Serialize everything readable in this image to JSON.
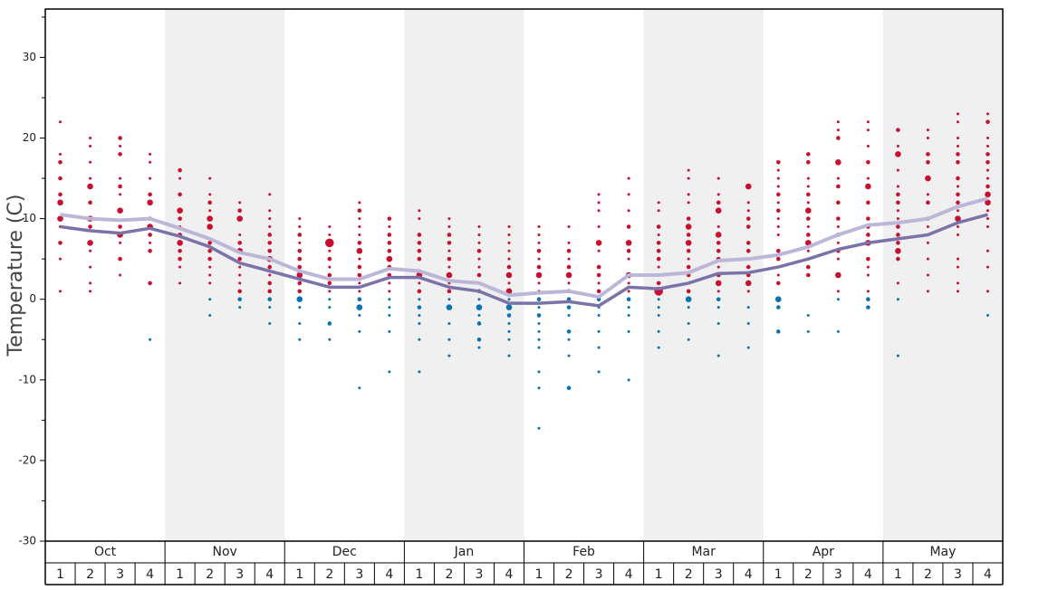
{
  "chart_data": {
    "type": "weekly-scatter",
    "y_label": "Temperature (C)",
    "categories": [
      "Oct",
      "Nov",
      "Dec",
      "Jan",
      "Feb",
      "Mar",
      "Apr",
      "May"
    ],
    "week_labels": [
      "1",
      "2",
      "3",
      "4"
    ],
    "ylim": [
      -30,
      36
    ],
    "yticks": [
      -30,
      -20,
      -10,
      0,
      10,
      20,
      30
    ],
    "minor_yticks": [
      -25,
      -15,
      -5,
      5,
      15,
      25,
      35
    ],
    "warm_color": "#c8102e",
    "cold_color": "#0a72b0",
    "color_threshold": 0,
    "band_color": "#f0f0f0",
    "series": [
      {
        "color": "#bcb6d8",
        "values": [
          10.5,
          10,
          9.8,
          10,
          8.8,
          7.5,
          5.8,
          5,
          3.5,
          2.5,
          2.5,
          3.8,
          3.5,
          2.3,
          2.0,
          0.5,
          0.8,
          1.0,
          0.3,
          3.0,
          3.0,
          3.3,
          4.8,
          5.0,
          5.5,
          6.5,
          8.0,
          9.2,
          9.5,
          10.0,
          11.5,
          12.5
        ]
      },
      {
        "color": "#7a72a8",
        "values": [
          9.0,
          8.5,
          8.2,
          8.8,
          7.8,
          6.5,
          4.5,
          3.5,
          2.5,
          1.5,
          1.5,
          2.7,
          2.7,
          1.5,
          1.0,
          -0.5,
          -0.5,
          -0.3,
          -0.8,
          1.5,
          1.3,
          2.0,
          3.2,
          3.3,
          4.0,
          5.0,
          6.2,
          7.0,
          7.5,
          8.0,
          9.5,
          10.5
        ]
      }
    ],
    "weeks": [
      {
        "temps": [
          22,
          18,
          17,
          15,
          13,
          12,
          10,
          9,
          7,
          5,
          1
        ],
        "counts": [
          1,
          1,
          2,
          2,
          2,
          3,
          3,
          1,
          2,
          1,
          1
        ]
      },
      {
        "temps": [
          20,
          19,
          17,
          15,
          14,
          12,
          10,
          9,
          7,
          6,
          4,
          2,
          1
        ],
        "counts": [
          1,
          1,
          1,
          1,
          3,
          2,
          3,
          2,
          3,
          1,
          1,
          1,
          1
        ]
      },
      {
        "temps": [
          20,
          19,
          18,
          15,
          14,
          13,
          11,
          9,
          8,
          7,
          5,
          3
        ],
        "counts": [
          2,
          1,
          2,
          1,
          2,
          1,
          3,
          2,
          3,
          1,
          2,
          1
        ]
      },
      {
        "temps": [
          18,
          17,
          15,
          13,
          12,
          10,
          9,
          8,
          7,
          6,
          2,
          -5
        ],
        "counts": [
          1,
          1,
          1,
          2,
          3,
          2,
          3,
          2,
          1,
          2,
          2,
          1
        ]
      },
      {
        "temps": [
          16,
          15,
          13,
          11,
          10,
          9,
          8,
          7,
          6,
          5,
          4,
          2
        ],
        "counts": [
          2,
          1,
          2,
          3,
          2,
          1,
          2,
          3,
          2,
          2,
          1,
          1
        ]
      },
      {
        "temps": [
          15,
          13,
          12,
          11,
          10,
          9,
          7,
          6,
          5,
          4,
          3,
          2,
          0,
          -2
        ],
        "counts": [
          1,
          1,
          2,
          1,
          3,
          3,
          2,
          2,
          2,
          1,
          1,
          1,
          1,
          1
        ]
      },
      {
        "temps": [
          12,
          11,
          10,
          8,
          7,
          6,
          5,
          4,
          3,
          2,
          1,
          0,
          -1
        ],
        "counts": [
          1,
          2,
          3,
          1,
          2,
          3,
          2,
          1,
          1,
          1,
          2,
          2,
          1
        ]
      },
      {
        "temps": [
          13,
          11,
          10,
          9,
          8,
          7,
          6,
          5,
          4,
          3,
          2,
          1,
          0,
          -1,
          -3
        ],
        "counts": [
          1,
          1,
          1,
          1,
          2,
          2,
          2,
          3,
          2,
          1,
          2,
          2,
          2,
          1,
          1
        ]
      },
      {
        "temps": [
          10,
          9,
          8,
          7,
          6,
          5,
          4,
          3,
          2,
          1,
          0,
          -1,
          -3,
          -5
        ],
        "counts": [
          1,
          1,
          2,
          1,
          2,
          2,
          2,
          3,
          2,
          2,
          3,
          1,
          1,
          1
        ]
      },
      {
        "temps": [
          9,
          8,
          7,
          6,
          5,
          4,
          3,
          2,
          1,
          0,
          -1,
          -3,
          -5
        ],
        "counts": [
          1,
          1,
          4,
          1,
          2,
          1,
          2,
          2,
          1,
          1,
          1,
          2,
          1
        ]
      },
      {
        "temps": [
          12,
          11,
          10,
          9,
          8,
          7,
          6,
          5,
          4,
          3,
          2,
          1,
          0,
          -1,
          -2,
          -4,
          -11
        ],
        "counts": [
          1,
          2,
          1,
          1,
          1,
          2,
          3,
          1,
          2,
          2,
          1,
          1,
          2,
          3,
          1,
          1,
          1
        ]
      },
      {
        "temps": [
          10,
          9,
          8,
          7,
          6,
          5,
          4,
          3,
          2,
          1,
          0,
          -1,
          -2,
          -4,
          -9
        ],
        "counts": [
          2,
          1,
          2,
          2,
          2,
          3,
          2,
          2,
          1,
          1,
          1,
          1,
          1,
          1,
          1
        ]
      },
      {
        "temps": [
          11,
          10,
          8,
          7,
          6,
          5,
          3,
          2,
          1,
          0,
          -1,
          -2,
          -3,
          -5,
          -9
        ],
        "counts": [
          1,
          1,
          2,
          2,
          2,
          2,
          3,
          1,
          2,
          1,
          2,
          1,
          1,
          1,
          1
        ]
      },
      {
        "temps": [
          10,
          9,
          8,
          7,
          6,
          5,
          4,
          3,
          2,
          1,
          0,
          -1,
          -3,
          -5,
          -7
        ],
        "counts": [
          1,
          1,
          2,
          2,
          1,
          2,
          1,
          3,
          1,
          2,
          1,
          3,
          1,
          1,
          1
        ]
      },
      {
        "temps": [
          9,
          8,
          7,
          6,
          5,
          4,
          3,
          2,
          1,
          0,
          -1,
          -2,
          -3,
          -5,
          -6
        ],
        "counts": [
          1,
          1,
          1,
          2,
          1,
          1,
          2,
          1,
          2,
          1,
          3,
          1,
          2,
          2,
          1
        ]
      },
      {
        "temps": [
          9,
          8,
          7,
          6,
          5,
          4,
          3,
          2,
          1,
          0,
          -1,
          -2,
          -3,
          -4,
          -5,
          -7
        ],
        "counts": [
          1,
          1,
          1,
          1,
          1,
          2,
          3,
          1,
          3,
          1,
          3,
          2,
          1,
          1,
          1,
          1
        ]
      },
      {
        "temps": [
          9,
          8,
          7,
          6,
          5,
          4,
          3,
          2,
          1,
          0,
          -1,
          -2,
          -3,
          -4,
          -5,
          -6,
          -9,
          -11,
          -16
        ],
        "counts": [
          1,
          1,
          1,
          2,
          1,
          2,
          3,
          1,
          1,
          2,
          1,
          2,
          1,
          1,
          1,
          1,
          1,
          1,
          1
        ]
      },
      {
        "temps": [
          9,
          7,
          6,
          5,
          4,
          3,
          2,
          1,
          0,
          -1,
          -2,
          -4,
          -5,
          -7,
          -11
        ],
        "counts": [
          1,
          1,
          2,
          1,
          2,
          3,
          1,
          2,
          2,
          2,
          1,
          2,
          1,
          1,
          2
        ]
      },
      {
        "temps": [
          13,
          12,
          11,
          9,
          7,
          6,
          4,
          3,
          2,
          1,
          0,
          -1,
          -2,
          -4,
          -6,
          -9
        ],
        "counts": [
          1,
          1,
          1,
          1,
          3,
          1,
          2,
          2,
          1,
          2,
          2,
          1,
          1,
          1,
          1,
          1
        ]
      },
      {
        "temps": [
          15,
          13,
          11,
          9,
          7,
          6,
          5,
          3,
          2,
          1,
          0,
          -1,
          -2,
          -4,
          -10
        ],
        "counts": [
          1,
          1,
          1,
          2,
          3,
          2,
          1,
          3,
          1,
          1,
          2,
          1,
          1,
          1,
          1
        ]
      },
      {
        "temps": [
          12,
          11,
          9,
          8,
          7,
          6,
          5,
          4,
          3,
          2,
          1,
          0,
          -1,
          -2,
          -4,
          -6
        ],
        "counts": [
          1,
          1,
          2,
          1,
          2,
          2,
          2,
          1,
          1,
          2,
          4,
          1,
          1,
          1,
          1,
          1
        ]
      },
      {
        "temps": [
          16,
          15,
          13,
          12,
          10,
          9,
          8,
          7,
          6,
          5,
          4,
          3,
          1,
          0,
          -1,
          -3,
          -5
        ],
        "counts": [
          1,
          1,
          1,
          1,
          2,
          3,
          2,
          3,
          2,
          1,
          2,
          2,
          2,
          3,
          1,
          1,
          1
        ]
      },
      {
        "temps": [
          15,
          13,
          12,
          11,
          9,
          8,
          7,
          6,
          5,
          4,
          3,
          2,
          1,
          0,
          -1,
          -3,
          -7
        ],
        "counts": [
          1,
          1,
          2,
          3,
          1,
          3,
          2,
          2,
          2,
          1,
          2,
          3,
          1,
          2,
          1,
          1,
          1
        ]
      },
      {
        "temps": [
          14,
          12,
          11,
          10,
          9,
          7,
          6,
          5,
          4,
          3,
          2,
          1,
          -1,
          -3,
          -6
        ],
        "counts": [
          3,
          1,
          1,
          2,
          2,
          2,
          2,
          1,
          2,
          2,
          3,
          1,
          1,
          1,
          1
        ]
      },
      {
        "temps": [
          17,
          16,
          15,
          14,
          13,
          12,
          11,
          10,
          9,
          8,
          6,
          5,
          3,
          2,
          0,
          -1,
          -4
        ],
        "counts": [
          2,
          1,
          1,
          1,
          2,
          1,
          2,
          1,
          1,
          1,
          2,
          2,
          1,
          2,
          3,
          2,
          2
        ]
      },
      {
        "temps": [
          18,
          17,
          15,
          14,
          13,
          12,
          11,
          10,
          9,
          8,
          7,
          6,
          4,
          3,
          -2,
          -4
        ],
        "counts": [
          2,
          2,
          1,
          1,
          2,
          1,
          3,
          2,
          1,
          2,
          3,
          1,
          2,
          2,
          1,
          1
        ]
      },
      {
        "temps": [
          22,
          21,
          20,
          17,
          15,
          14,
          12,
          10,
          9,
          8,
          7,
          6,
          5,
          3,
          1,
          0,
          -4
        ],
        "counts": [
          1,
          1,
          2,
          3,
          1,
          2,
          2,
          2,
          1,
          2,
          1,
          2,
          1,
          3,
          1,
          1,
          1
        ]
      },
      {
        "temps": [
          22,
          21,
          19,
          17,
          15,
          14,
          12,
          10,
          9,
          8,
          7,
          5,
          4,
          3,
          1,
          0,
          -1
        ],
        "counts": [
          1,
          1,
          1,
          2,
          1,
          3,
          2,
          2,
          2,
          2,
          3,
          2,
          1,
          1,
          1,
          2,
          2
        ]
      },
      {
        "temps": [
          21,
          19,
          18,
          16,
          14,
          13,
          12,
          11,
          10,
          9,
          8,
          7,
          6,
          5,
          2,
          0,
          -7
        ],
        "counts": [
          2,
          1,
          3,
          1,
          1,
          2,
          2,
          1,
          1,
          2,
          2,
          2,
          3,
          2,
          1,
          1,
          1
        ]
      },
      {
        "temps": [
          21,
          20,
          18,
          17,
          15,
          13,
          12,
          10,
          9,
          8,
          7,
          5,
          3,
          1
        ],
        "counts": [
          1,
          1,
          2,
          2,
          3,
          1,
          2,
          2,
          1,
          1,
          1,
          1,
          1,
          1
        ]
      },
      {
        "temps": [
          23,
          22,
          20,
          19,
          18,
          17,
          15,
          14,
          13,
          12,
          11,
          10,
          9,
          8,
          5,
          4,
          2,
          1
        ],
        "counts": [
          1,
          1,
          1,
          1,
          2,
          2,
          2,
          1,
          2,
          2,
          1,
          3,
          1,
          1,
          1,
          1,
          1,
          1
        ]
      },
      {
        "temps": [
          23,
          22,
          20,
          19,
          18,
          17,
          16,
          15,
          14,
          13,
          12,
          11,
          10,
          9,
          6,
          4,
          1,
          -2
        ],
        "counts": [
          1,
          2,
          1,
          1,
          2,
          2,
          1,
          1,
          2,
          3,
          3,
          1,
          1,
          1,
          1,
          1,
          1,
          1
        ]
      }
    ]
  }
}
